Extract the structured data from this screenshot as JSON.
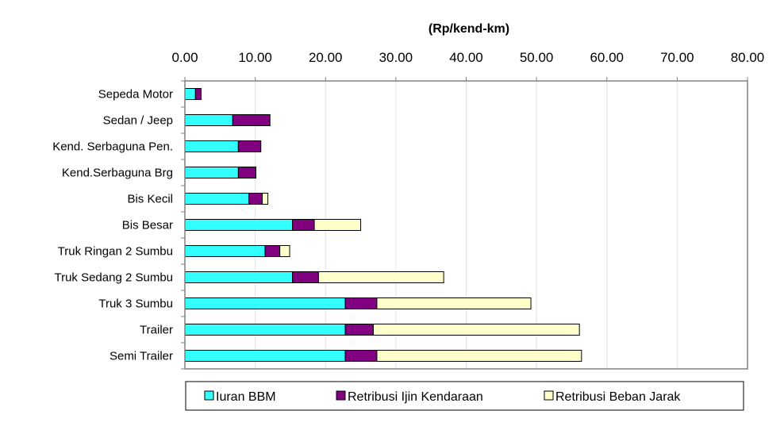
{
  "chart_data": {
    "type": "bar",
    "orientation": "horizontal",
    "stacked": true,
    "unit_label": "(Rp/kend-km)",
    "xlim": [
      0,
      80
    ],
    "x_ticks": [
      "0.00",
      "10.00",
      "20.00",
      "30.00",
      "40.00",
      "50.00",
      "60.00",
      "70.00",
      "80.00"
    ],
    "x_axis_position": "top",
    "grid": "vertical",
    "legend_position": "bottom",
    "categories": [
      "Sepeda Motor",
      "Sedan / Jeep",
      "Kend. Serbaguna Pen.",
      "Kend.Serbaguna Brg",
      "Bis Kecil",
      "Bis Besar",
      "Truk Ringan 2 Sumbu",
      "Truk Sedang 2 Sumbu",
      "Truk 3 Sumbu",
      "Trailer",
      "Semi Trailer"
    ],
    "series": [
      {
        "name": "Iuran BBM",
        "color": "#33ffff",
        "values": [
          1.5,
          6.8,
          7.6,
          7.6,
          9.1,
          15.3,
          11.4,
          15.3,
          22.8,
          22.8,
          22.8
        ]
      },
      {
        "name": "Retribusi Ijin Kendaraan",
        "color": "#800080",
        "values": [
          0.8,
          5.3,
          3.2,
          2.5,
          1.9,
          3.1,
          2.1,
          3.7,
          4.5,
          4.0,
          4.5
        ]
      },
      {
        "name": "Retribusi Beban Jarak",
        "color": "#ffffcc",
        "values": [
          0.0,
          0.0,
          0.0,
          0.0,
          0.8,
          6.6,
          1.4,
          17.8,
          21.9,
          29.3,
          29.1
        ]
      }
    ]
  }
}
